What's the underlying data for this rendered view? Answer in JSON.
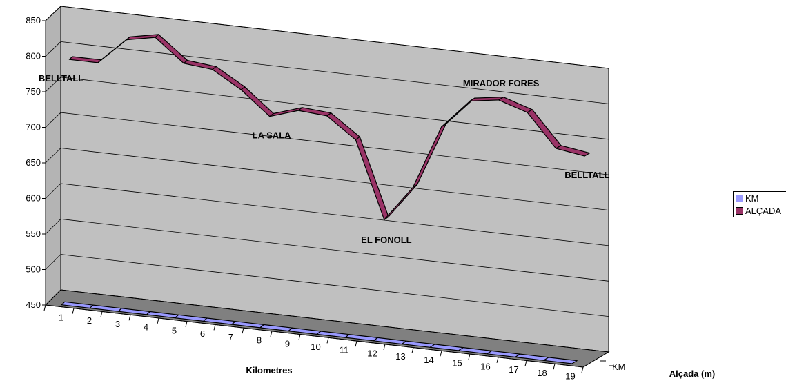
{
  "chart_data": {
    "type": "line",
    "style": "3d-ribbon",
    "xlabel": "Kilometres",
    "ylabel": "Alçada (m)",
    "depth_label": "KM",
    "ylim": [
      450,
      850
    ],
    "yticks": [
      450,
      500,
      550,
      600,
      650,
      700,
      750,
      800,
      850
    ],
    "categories": [
      "1",
      "2",
      "3",
      "4",
      "5",
      "6",
      "7",
      "8",
      "9",
      "10",
      "11",
      "12",
      "13",
      "14",
      "15",
      "16",
      "17",
      "18",
      "19"
    ],
    "series": [
      {
        "name": "KM",
        "color": "#9999ff",
        "values": [
          1,
          2,
          3,
          4,
          5,
          6,
          7,
          8,
          9,
          10,
          11,
          12,
          13,
          14,
          15,
          16,
          17,
          18,
          19
        ]
      },
      {
        "name": "ALÇADA",
        "color": "#993366",
        "values": [
          785,
          785,
          822,
          830,
          798,
          794,
          770,
          737,
          750,
          747,
          718,
          610,
          660,
          750,
          791,
          797,
          784,
          738,
          732
        ]
      }
    ],
    "annotations": [
      {
        "text": "BELLTALL",
        "category": "1"
      },
      {
        "text": "LA SALA",
        "category": "8"
      },
      {
        "text": "EL FONOLL",
        "category": "12"
      },
      {
        "text": "MIRADOR FORES",
        "category": "16"
      },
      {
        "text": "BELLTALL",
        "category": "19"
      }
    ],
    "legend_position": "right",
    "grid": true,
    "colors": {
      "wall": "#c0c0c0",
      "floor": "#808080",
      "line": "#000000"
    }
  }
}
